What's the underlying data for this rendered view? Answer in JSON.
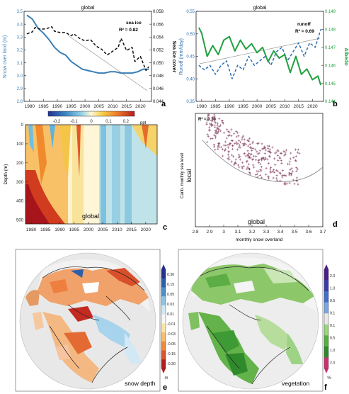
{
  "colors": {
    "snow": "#3a7fb5",
    "seaice_black": "#111111",
    "runoff_blue": "#2e6fb0",
    "albedo_green": "#22a040",
    "scatter_points": "#8a4a6a",
    "fit_grey": "#888888"
  },
  "chart_data": [
    {
      "id": "a",
      "type": "line",
      "title": "global",
      "panel_letter": "a",
      "ylabel_left": "Snow over land (m)",
      "ylabel_right": "Sea ice cover",
      "ylim_left": [
        2.8,
        3.5
      ],
      "ylim_right": [
        0.044,
        0.058
      ],
      "yticks_left": [
        "2.8",
        "2.9",
        "3.0",
        "3.1",
        "3.2",
        "3.3",
        "3.4",
        "3.5"
      ],
      "yticks_right": [
        "0.044",
        "0.046",
        "0.048",
        "0.050",
        "0.052",
        "0.054",
        "0.056",
        "0.058"
      ],
      "xticks": [
        "1980",
        "1985",
        "1990",
        "1995",
        "2000",
        "2005",
        "2010",
        "2015",
        "2020"
      ],
      "annotation": "sea ice",
      "r2": "R² = 0.82",
      "series": [
        {
          "axis": "left",
          "style": "solid",
          "x": [
            1979,
            1981,
            1983,
            1985,
            1987,
            1989,
            1991,
            1993,
            1995,
            1997,
            1999,
            2001,
            2003,
            2005,
            2007,
            2009,
            2011,
            2013,
            2015,
            2017,
            2019,
            2021,
            2023
          ],
          "values": [
            3.47,
            3.44,
            3.37,
            3.33,
            3.28,
            3.22,
            3.18,
            3.16,
            3.11,
            3.08,
            3.05,
            3.04,
            3.03,
            3.02,
            3.02,
            3.03,
            3.03,
            3.02,
            3.02,
            3.02,
            3.03,
            3.05,
            3.05
          ]
        },
        {
          "axis": "right",
          "style": "dashed",
          "x": [
            1979,
            1981,
            1982,
            1984,
            1986,
            1988,
            1989,
            1991,
            1993,
            1995,
            1996,
            1998,
            2000,
            2002,
            2004,
            2006,
            2008,
            2010,
            2012,
            2013,
            2015,
            2017,
            2018,
            2020,
            2022,
            2023
          ],
          "values": [
            0.0545,
            0.0548,
            0.0555,
            0.0552,
            0.0553,
            0.0556,
            0.0549,
            0.0547,
            0.0547,
            0.0542,
            0.0545,
            0.0538,
            0.0534,
            0.0536,
            0.0526,
            0.0521,
            0.0512,
            0.0518,
            0.0524,
            0.0538,
            0.0519,
            0.0524,
            0.0502,
            0.051,
            0.0488,
            0.0494
          ]
        }
      ]
    },
    {
      "id": "b",
      "type": "line",
      "title": "global",
      "panel_letter": "b",
      "ylabel_left": "Runoff (mm/day)",
      "ylabel_right": "Albedo",
      "ylim_left": [
        0.35,
        0.55
      ],
      "ylim_right": [
        0.144,
        0.149
      ],
      "yticks_left": [
        "0.35",
        "0.40",
        "0.45",
        "0.50",
        "0.55"
      ],
      "yticks_right": [
        "0.144",
        "0.145",
        "0.146",
        "0.147",
        "0.148",
        "0.149"
      ],
      "xticks": [
        "1980",
        "1985",
        "1990",
        "1995",
        "2000",
        "2005",
        "2010",
        "2015",
        "2020"
      ],
      "annotation": "runoff",
      "r2": "R² = 0.69",
      "series": [
        {
          "axis": "left",
          "style": "dashed",
          "x": [
            1979,
            1981,
            1983,
            1985,
            1987,
            1989,
            1991,
            1993,
            1995,
            1997,
            1999,
            2001,
            2003,
            2005,
            2007,
            2009,
            2011,
            2013,
            2015,
            2017,
            2019,
            2021,
            2023
          ],
          "values": [
            0.43,
            0.42,
            0.43,
            0.41,
            0.43,
            0.44,
            0.4,
            0.43,
            0.42,
            0.45,
            0.43,
            0.44,
            0.45,
            0.43,
            0.46,
            0.47,
            0.44,
            0.46,
            0.48,
            0.45,
            0.48,
            0.47,
            0.51
          ]
        },
        {
          "axis": "right",
          "style": "solid",
          "x": [
            1979,
            1980,
            1982,
            1984,
            1986,
            1988,
            1990,
            1992,
            1994,
            1996,
            1998,
            2000,
            2002,
            2004,
            2006,
            2008,
            2010,
            2012,
            2014,
            2016,
            2018,
            2020,
            2022,
            2023
          ],
          "values": [
            0.1481,
            0.1478,
            0.1465,
            0.1471,
            0.1466,
            0.1474,
            0.1476,
            0.1468,
            0.1474,
            0.1469,
            0.1472,
            0.1467,
            0.147,
            0.1462,
            0.1468,
            0.1464,
            0.1466,
            0.1456,
            0.1465,
            0.1455,
            0.1458,
            0.1452,
            0.1454,
            0.1449
          ]
        }
      ]
    },
    {
      "id": "c",
      "type": "heatmap",
      "panel_letter": "c",
      "ylabel": "Depth (m)",
      "label": "global",
      "colorbar_ticks": [
        "-0.2",
        "-0.1",
        "0",
        "0.1",
        "0.2"
      ],
      "colorbar_unit": "ppt",
      "yticks": [
        "0",
        "100",
        "200",
        "300",
        "400",
        "500"
      ],
      "xticks": [
        "1980",
        "1985",
        "1990",
        "1995",
        "2000",
        "2005",
        "2010",
        "2015",
        "2020"
      ],
      "ylim": [
        0,
        520
      ]
    },
    {
      "id": "d",
      "type": "scatter",
      "panel_letter": "d",
      "r2": "R² = 0.30",
      "ylabel": "Carib. monthly sea level",
      "ylabel_big": "local",
      "xlabel": "monthly snow overland",
      "label": "global",
      "xticks": [
        "2.8",
        "2.9",
        "3",
        "3.1",
        "3.2",
        "3.3",
        "3.4",
        "3.5",
        "3.6",
        "3.7"
      ],
      "xlim": [
        2.8,
        3.7
      ],
      "yticks": [
        "0",
        "10",
        "20",
        "30",
        "40",
        "50",
        "60"
      ],
      "ylim": [
        0,
        60
      ],
      "fit": {
        "a": 0.0,
        "note": "quadratic fit"
      }
    },
    {
      "id": "e",
      "type": "map",
      "panel_letter": "e",
      "label": "snow depth",
      "colorbar_ticks": [
        "0.30",
        "0.15",
        "0.05",
        "0.03",
        "0.01",
        "-0.01",
        "-0.03",
        "-0.05",
        "-0.15",
        "-0.30"
      ],
      "colorbar_unit": "m"
    },
    {
      "id": "f",
      "type": "map",
      "panel_letter": "f",
      "label": "vegetation",
      "colorbar_ticks": [
        "2.0",
        "1.0",
        "0.5",
        "0.1",
        "0.1",
        "0.5",
        "1.0",
        "2.0"
      ],
      "colorbar_unit": "%"
    }
  ]
}
